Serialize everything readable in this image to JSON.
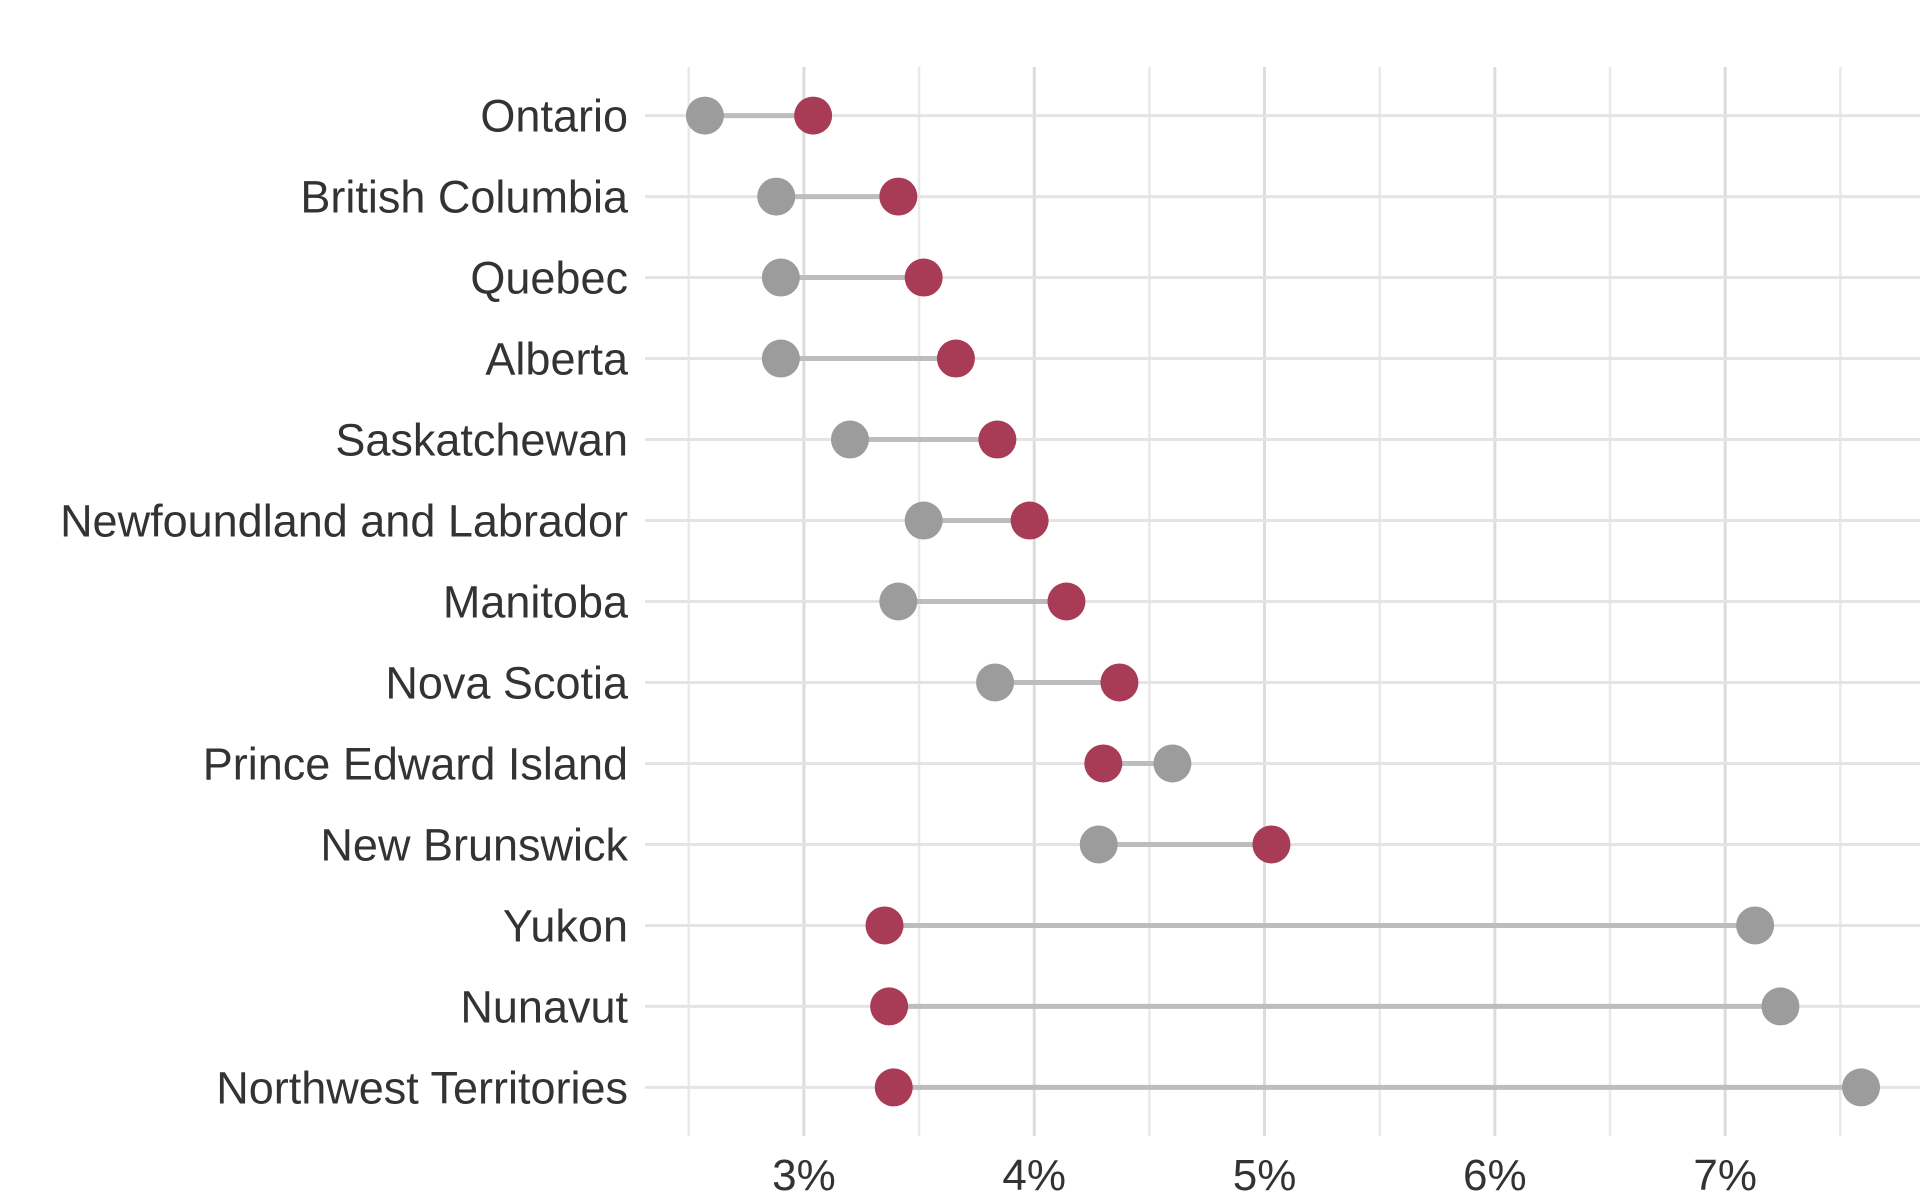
{
  "chart_data": {
    "type": "scatter",
    "variant": "dumbbell",
    "orientation": "horizontal",
    "title": "",
    "xlabel": "",
    "ylabel": "",
    "categories": [
      "Ontario",
      "British Columbia",
      "Quebec",
      "Alberta",
      "Saskatchewan",
      "Newfoundland and Labrador",
      "Manitoba",
      "Nova Scotia",
      "Prince Edward Island",
      "New Brunswick",
      "Yukon",
      "Nunavut",
      "Northwest Territories"
    ],
    "series": [
      {
        "name": "gray-dot",
        "color": "#9C9C9C",
        "values": [
          2.57,
          2.88,
          2.9,
          2.9,
          3.2,
          3.52,
          3.41,
          3.83,
          4.6,
          4.28,
          7.13,
          7.24,
          7.59
        ]
      },
      {
        "name": "crimson-dot",
        "color": "#A83B55",
        "values": [
          3.04,
          3.41,
          3.52,
          3.66,
          3.84,
          3.98,
          4.14,
          4.37,
          4.3,
          5.03,
          3.35,
          3.37,
          3.39
        ]
      }
    ],
    "x_ticks": [
      {
        "value": 3,
        "label": "3%"
      },
      {
        "value": 4,
        "label": "4%"
      },
      {
        "value": 5,
        "label": "5%"
      },
      {
        "value": 6,
        "label": "6%"
      },
      {
        "value": 7,
        "label": "7%"
      }
    ],
    "x_minor_ticks": [
      2.5,
      3.5,
      4.5,
      5.5,
      6.5,
      7.5
    ],
    "xlim": [
      2.31,
      7.846
    ],
    "grid": true,
    "legend": false,
    "colors": {
      "connector": "#BDBDBD",
      "grid_major": "#DCDCDC",
      "grid_minor": "#E9E9E9",
      "row_line": "#E4E4E4",
      "text": "#333333",
      "background": "#FFFFFF"
    }
  }
}
